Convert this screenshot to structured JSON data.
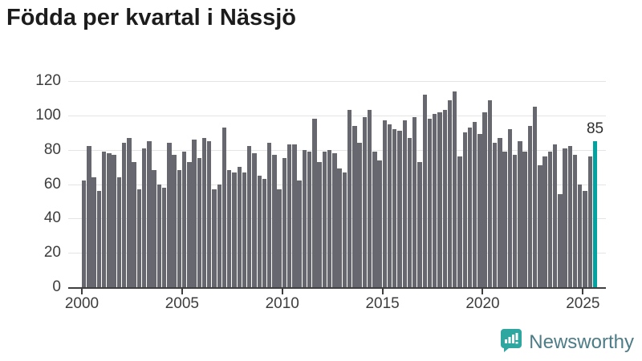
{
  "title": "Födda per kvartal i Nässjö",
  "chart_data": {
    "type": "bar",
    "title": "Födda per kvartal i Nässjö",
    "frequency": "quarterly",
    "start_period": "2000 Q1",
    "end_period": "2025 Q3",
    "x_tick_labels": [
      "2000",
      "2005",
      "2010",
      "2015",
      "2020",
      "2025"
    ],
    "y_ticks": [
      0,
      20,
      40,
      60,
      80,
      100,
      120
    ],
    "ylim": [
      0,
      120
    ],
    "grid": "horizontal",
    "legend": "none",
    "series": [
      {
        "name": "Födda",
        "values": [
          62,
          82,
          64,
          56,
          79,
          78,
          77,
          64,
          84,
          87,
          73,
          57,
          81,
          85,
          68,
          60,
          58,
          84,
          77,
          68,
          79,
          73,
          86,
          75,
          87,
          85,
          57,
          60,
          93,
          68,
          67,
          70,
          67,
          82,
          78,
          65,
          63,
          84,
          77,
          57,
          75,
          83,
          83,
          62,
          80,
          79,
          98,
          73,
          79,
          80,
          78,
          69,
          67,
          103,
          94,
          84,
          99,
          103,
          79,
          74,
          97,
          95,
          92,
          91,
          97,
          87,
          99,
          73,
          112,
          98,
          101,
          102,
          103,
          109,
          114,
          76,
          90,
          93,
          96,
          89,
          102,
          109,
          84,
          87,
          79,
          92,
          77,
          85,
          79,
          94,
          105,
          71,
          76,
          79,
          83,
          54,
          81,
          82,
          77,
          60,
          56,
          76,
          85
        ]
      }
    ],
    "highlight": {
      "period": "2025 Q3",
      "value": 85,
      "label": "85"
    }
  },
  "annotation": {
    "last_value_label": "85"
  },
  "colors": {
    "bar": "#67676f",
    "highlight": "#00a3a0",
    "grid": "#e4e4e4",
    "axis": "#3f3f3f",
    "title": "#1c1c1c",
    "tick_label": "#3d3d3d",
    "logo_icon": "#2fa7a1",
    "logo_text": "#4d7c86"
  },
  "logo": {
    "text": "Newsworthy",
    "icon": "newsworthy-chart-bubble-icon"
  }
}
